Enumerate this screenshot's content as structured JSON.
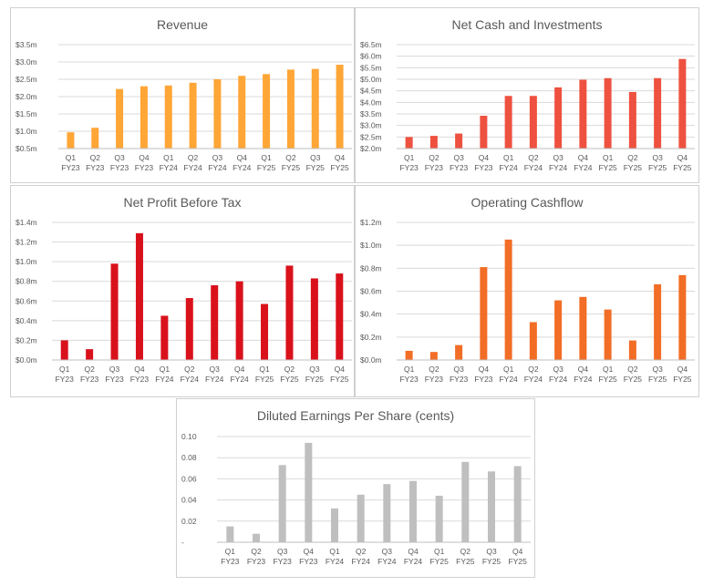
{
  "chart_data": [
    {
      "id": "revenue",
      "type": "bar",
      "title": "Revenue",
      "color": "#FFA637",
      "categories": [
        [
          "Q1",
          "FY23"
        ],
        [
          "Q2",
          "FY23"
        ],
        [
          "Q3",
          "FY23"
        ],
        [
          "Q4",
          "FY23"
        ],
        [
          "Q1",
          "FY24"
        ],
        [
          "Q2",
          "FY24"
        ],
        [
          "Q3",
          "FY24"
        ],
        [
          "Q4",
          "FY24"
        ],
        [
          "Q1",
          "FY25"
        ],
        [
          "Q2",
          "FY25"
        ],
        [
          "Q3",
          "FY25"
        ],
        [
          "Q4",
          "FY25"
        ]
      ],
      "values": [
        0.97,
        1.1,
        2.22,
        2.3,
        2.32,
        2.4,
        2.5,
        2.6,
        2.65,
        2.78,
        2.8,
        2.92
      ],
      "ylim": [
        0.5,
        3.5
      ],
      "yticks": [
        0.5,
        1.0,
        1.5,
        2.0,
        2.5,
        3.0,
        3.5
      ],
      "ytick_labels": [
        "$0.5m",
        "$1.0m",
        "$1.5m",
        "$2.0m",
        "$2.5m",
        "$3.0m",
        "$3.5m"
      ],
      "xlabel": "",
      "ylabel": ""
    },
    {
      "id": "net-cash",
      "type": "bar",
      "title": "Net Cash and Investments",
      "color": "#EE5140",
      "categories": [
        [
          "Q1",
          "FY23"
        ],
        [
          "Q2",
          "FY23"
        ],
        [
          "Q3",
          "FY23"
        ],
        [
          "Q4",
          "FY23"
        ],
        [
          "Q1",
          "FY24"
        ],
        [
          "Q2",
          "FY24"
        ],
        [
          "Q3",
          "FY24"
        ],
        [
          "Q4",
          "FY24"
        ],
        [
          "Q1",
          "FY25"
        ],
        [
          "Q2",
          "FY25"
        ],
        [
          "Q3",
          "FY25"
        ],
        [
          "Q4",
          "FY25"
        ]
      ],
      "values": [
        2.5,
        2.55,
        2.65,
        3.42,
        4.28,
        4.28,
        4.65,
        4.98,
        5.05,
        4.45,
        5.05,
        5.88
      ],
      "ylim": [
        2.0,
        6.5
      ],
      "yticks": [
        2.0,
        2.5,
        3.0,
        3.5,
        4.0,
        4.5,
        5.0,
        5.5,
        6.0,
        6.5
      ],
      "ytick_labels": [
        "$2.0m",
        "$2.5m",
        "$3.0m",
        "$3.5m",
        "$4.0m",
        "$4.5m",
        "$5.0m",
        "$5.5m",
        "$6.0m",
        "$6.5m"
      ],
      "xlabel": "",
      "ylabel": ""
    },
    {
      "id": "npbt",
      "type": "bar",
      "title": "Net Profit Before Tax",
      "color": "#D9111B",
      "categories": [
        [
          "Q1",
          "FY23"
        ],
        [
          "Q2",
          "FY23"
        ],
        [
          "Q3",
          "FY23"
        ],
        [
          "Q4",
          "FY23"
        ],
        [
          "Q1",
          "FY24"
        ],
        [
          "Q2",
          "FY24"
        ],
        [
          "Q3",
          "FY24"
        ],
        [
          "Q4",
          "FY24"
        ],
        [
          "Q1",
          "FY25"
        ],
        [
          "Q2",
          "FY25"
        ],
        [
          "Q3",
          "FY25"
        ],
        [
          "Q4",
          "FY25"
        ]
      ],
      "values": [
        0.2,
        0.11,
        0.98,
        1.29,
        0.45,
        0.63,
        0.76,
        0.8,
        0.57,
        0.96,
        0.83,
        0.88
      ],
      "ylim": [
        0.0,
        1.4
      ],
      "yticks": [
        0.0,
        0.2,
        0.4,
        0.6,
        0.8,
        1.0,
        1.2,
        1.4
      ],
      "ytick_labels": [
        "$0.0m",
        "$0.2m",
        "$0.4m",
        "$0.6m",
        "$0.8m",
        "$1.0m",
        "$1.2m",
        "$1.4m"
      ],
      "xlabel": "",
      "ylabel": ""
    },
    {
      "id": "op-cashflow",
      "type": "bar",
      "title": "Operating Cashflow",
      "color": "#F26D26",
      "categories": [
        [
          "Q1",
          "FY23"
        ],
        [
          "Q2",
          "FY23"
        ],
        [
          "Q3",
          "FY23"
        ],
        [
          "Q4",
          "FY23"
        ],
        [
          "Q1",
          "FY24"
        ],
        [
          "Q2",
          "FY24"
        ],
        [
          "Q3",
          "FY24"
        ],
        [
          "Q4",
          "FY24"
        ],
        [
          "Q1",
          "FY25"
        ],
        [
          "Q2",
          "FY25"
        ],
        [
          "Q3",
          "FY25"
        ],
        [
          "Q4",
          "FY25"
        ]
      ],
      "values": [
        0.08,
        0.07,
        0.13,
        0.81,
        1.05,
        0.33,
        0.52,
        0.55,
        0.44,
        0.17,
        0.66,
        0.74
      ],
      "ylim": [
        0.0,
        1.2
      ],
      "yticks": [
        0.0,
        0.2,
        0.4,
        0.6,
        0.8,
        1.0,
        1.2
      ],
      "ytick_labels": [
        "$0.0m",
        "$0.2m",
        "$0.4m",
        "$0.6m",
        "$0.8m",
        "$1.0m",
        "$1.2m"
      ],
      "xlabel": "",
      "ylabel": ""
    },
    {
      "id": "eps",
      "type": "bar",
      "title": "Diluted Earnings Per Share (cents)",
      "color": "#BFBFBF",
      "categories": [
        [
          "Q1",
          "FY23"
        ],
        [
          "Q2",
          "FY23"
        ],
        [
          "Q3",
          "FY23"
        ],
        [
          "Q4",
          "FY23"
        ],
        [
          "Q1",
          "FY24"
        ],
        [
          "Q2",
          "FY24"
        ],
        [
          "Q3",
          "FY24"
        ],
        [
          "Q4",
          "FY24"
        ],
        [
          "Q1",
          "FY25"
        ],
        [
          "Q2",
          "FY25"
        ],
        [
          "Q3",
          "FY25"
        ],
        [
          "Q4",
          "FY25"
        ]
      ],
      "values": [
        0.015,
        0.008,
        0.073,
        0.094,
        0.032,
        0.045,
        0.055,
        0.058,
        0.044,
        0.076,
        0.067,
        0.072
      ],
      "ylim": [
        0.0,
        0.1
      ],
      "yticks": [
        0.0,
        0.02,
        0.04,
        0.06,
        0.08,
        0.1
      ],
      "ytick_labels": [
        "-",
        "0.02",
        "0.04",
        "0.06",
        "0.08",
        "0.10"
      ],
      "xlabel": "",
      "ylabel": ""
    }
  ]
}
